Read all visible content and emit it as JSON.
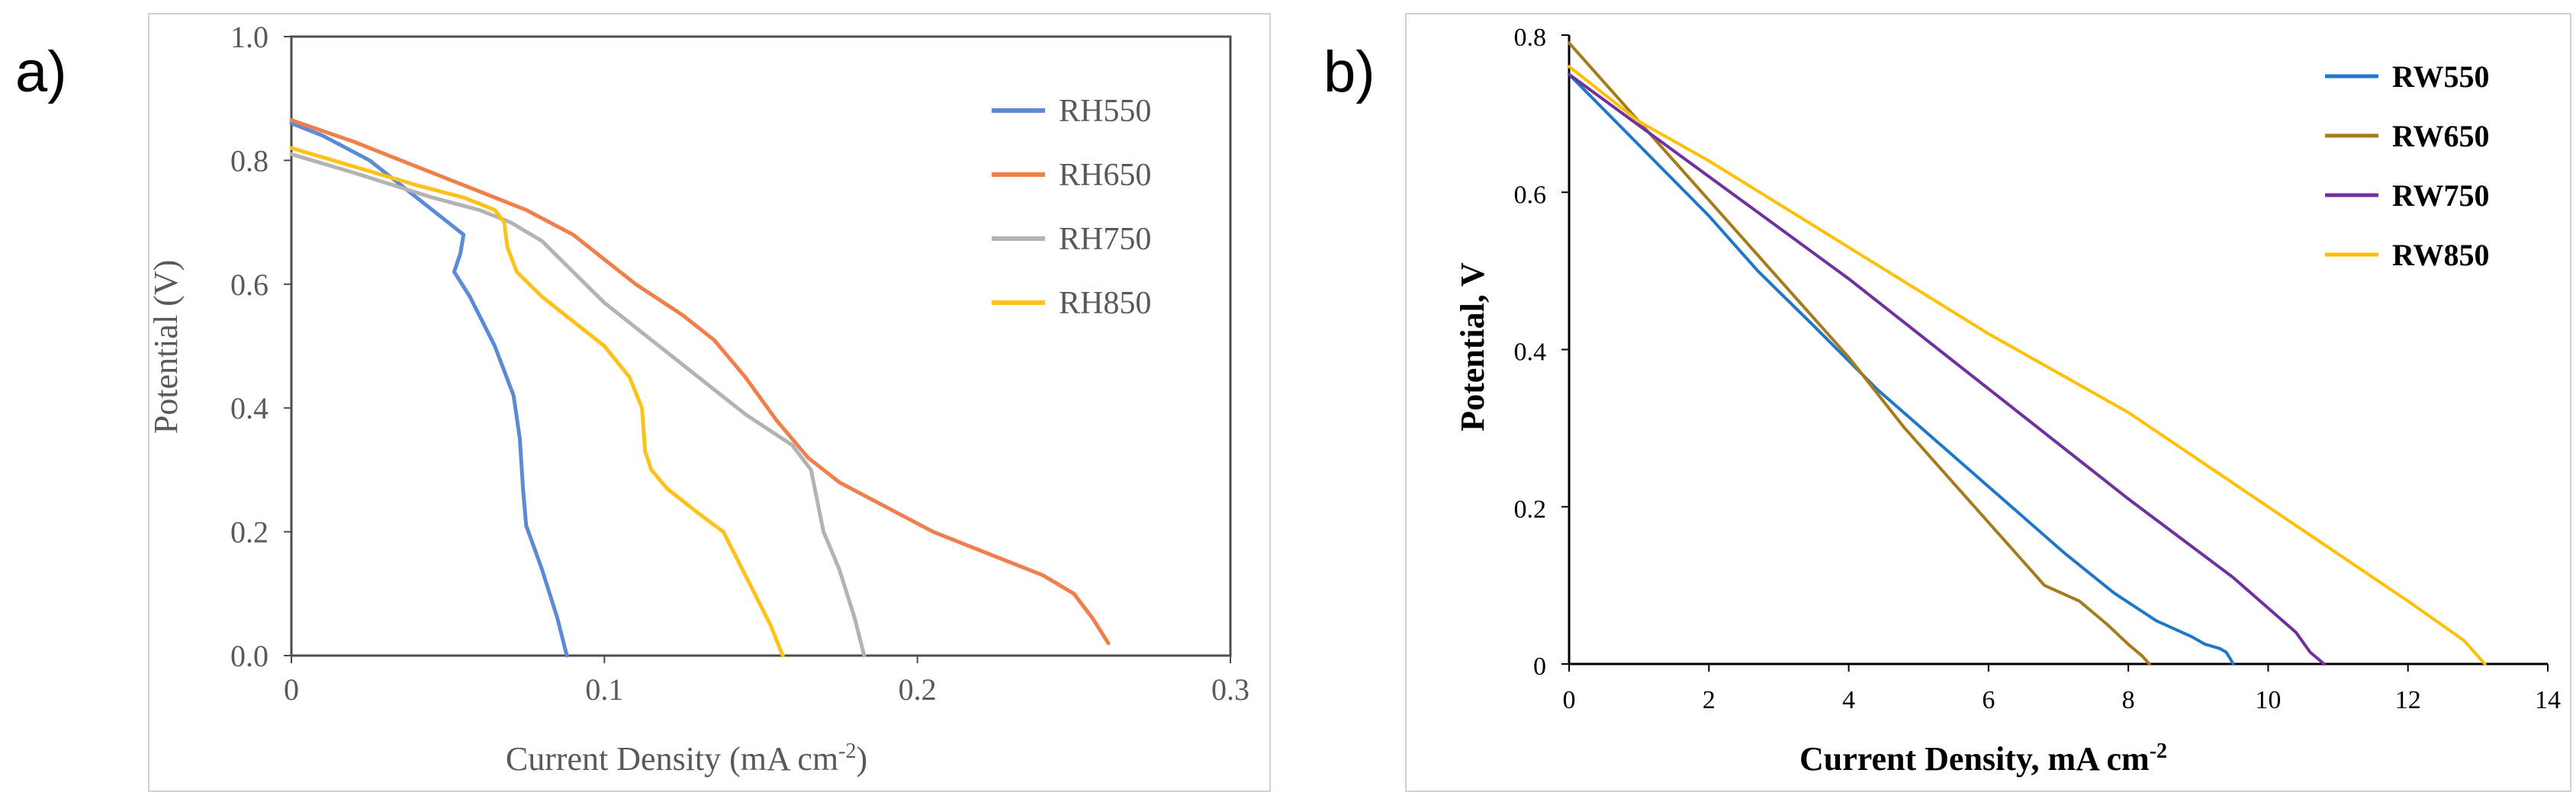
{
  "panels": [
    {
      "letter": "a)",
      "chart_data": {
        "type": "line",
        "title": "",
        "xlabel": "Current Density (mA cm",
        "xlabel_sup": "-2",
        "xlabel_tail": ")",
        "ylabel": "Potential (V)",
        "xlim": [
          0,
          0.3
        ],
        "ylim": [
          0,
          1.0
        ],
        "xticks": [
          0,
          0.1,
          0.2,
          0.3
        ],
        "xtick_labels": [
          "0",
          "0.1",
          "0.2",
          "0.3"
        ],
        "yticks": [
          0,
          0.2,
          0.4,
          0.6,
          0.8,
          1.0
        ],
        "ytick_labels": [
          "0.0",
          "0.2",
          "0.4",
          "0.6",
          "0.8",
          "1.0"
        ],
        "grid": false,
        "legend_position": "top-right",
        "series": [
          {
            "name": "RH550",
            "color": "#5B8BD7",
            "x": [
              0,
              0.01,
              0.025,
              0.04,
              0.05,
              0.055,
              0.054,
              0.052,
              0.057,
              0.065,
              0.071,
              0.073,
              0.074,
              0.075,
              0.08,
              0.085,
              0.088
            ],
            "y": [
              0.86,
              0.84,
              0.8,
              0.74,
              0.7,
              0.68,
              0.65,
              0.62,
              0.58,
              0.5,
              0.42,
              0.35,
              0.27,
              0.21,
              0.14,
              0.06,
              0.0
            ]
          },
          {
            "name": "RH650",
            "color": "#F07F4C",
            "x": [
              0,
              0.02,
              0.05,
              0.075,
              0.09,
              0.1,
              0.11,
              0.125,
              0.135,
              0.145,
              0.155,
              0.165,
              0.175,
              0.19,
              0.205,
              0.22,
              0.24,
              0.25,
              0.256,
              0.261
            ],
            "y": [
              0.865,
              0.83,
              0.77,
              0.72,
              0.68,
              0.64,
              0.6,
              0.55,
              0.51,
              0.45,
              0.38,
              0.32,
              0.28,
              0.24,
              0.2,
              0.17,
              0.13,
              0.1,
              0.06,
              0.02
            ]
          },
          {
            "name": "RH750",
            "color": "#B3B3B3",
            "x": [
              0,
              0.02,
              0.045,
              0.06,
              0.07,
              0.08,
              0.09,
              0.1,
              0.115,
              0.13,
              0.145,
              0.16,
              0.166,
              0.168,
              0.17,
              0.175,
              0.18,
              0.183
            ],
            "y": [
              0.81,
              0.78,
              0.74,
              0.72,
              0.7,
              0.67,
              0.62,
              0.57,
              0.51,
              0.45,
              0.39,
              0.34,
              0.3,
              0.25,
              0.2,
              0.14,
              0.06,
              0.0
            ]
          },
          {
            "name": "RH850",
            "color": "#FFC21A",
            "x": [
              0,
              0.02,
              0.04,
              0.055,
              0.065,
              0.068,
              0.069,
              0.072,
              0.08,
              0.09,
              0.1,
              0.108,
              0.112,
              0.113,
              0.115,
              0.12,
              0.13,
              0.138,
              0.142,
              0.148,
              0.153,
              0.157
            ],
            "y": [
              0.82,
              0.79,
              0.76,
              0.74,
              0.72,
              0.7,
              0.66,
              0.62,
              0.58,
              0.54,
              0.5,
              0.45,
              0.4,
              0.33,
              0.3,
              0.27,
              0.23,
              0.2,
              0.16,
              0.1,
              0.05,
              0.0
            ]
          }
        ]
      }
    },
    {
      "letter": "b)",
      "chart_data": {
        "type": "line",
        "title": "",
        "xlabel": "Current Density, mA cm",
        "xlabel_sup": "-2",
        "xlabel_tail": "",
        "ylabel": "Potential, V",
        "xlim": [
          0,
          14
        ],
        "ylim": [
          0,
          0.8
        ],
        "xticks": [
          0,
          2,
          4,
          6,
          8,
          10,
          12,
          14
        ],
        "xtick_labels": [
          "0",
          "2",
          "4",
          "6",
          "8",
          "10",
          "12",
          "14"
        ],
        "yticks": [
          0,
          0.2,
          0.4,
          0.6,
          0.8
        ],
        "ytick_labels": [
          "0",
          "0.2",
          "0.4",
          "0.6",
          "0.8"
        ],
        "grid": false,
        "legend_position": "top-right",
        "series": [
          {
            "name": "RW550",
            "color": "#1F77C9",
            "x": [
              0,
              1,
              2,
              2.7,
              3.5,
              4.4,
              5.3,
              6.2,
              7.1,
              7.8,
              8.4,
              8.9,
              9.1,
              9.3,
              9.4,
              9.45,
              9.5
            ],
            "y": [
              0.75,
              0.66,
              0.57,
              0.5,
              0.43,
              0.35,
              0.28,
              0.21,
              0.14,
              0.09,
              0.055,
              0.035,
              0.025,
              0.02,
              0.015,
              0.008,
              0.0
            ]
          },
          {
            "name": "RW650",
            "color": "#A67C1A",
            "x": [
              0,
              1,
              2,
              3,
              4,
              4.8,
              5.5,
              6,
              6.4,
              6.8,
              7.3,
              7.7,
              8,
              8.2,
              8.3
            ],
            "y": [
              0.79,
              0.69,
              0.59,
              0.49,
              0.39,
              0.3,
              0.23,
              0.18,
              0.14,
              0.1,
              0.08,
              0.05,
              0.025,
              0.01,
              0.0
            ]
          },
          {
            "name": "RW750",
            "color": "#7030A0",
            "x": [
              0,
              2,
              4,
              6,
              8,
              9.5,
              10.4,
              10.6,
              10.8
            ],
            "y": [
              0.75,
              0.62,
              0.49,
              0.35,
              0.21,
              0.11,
              0.04,
              0.015,
              0.0
            ]
          },
          {
            "name": "RW850",
            "color": "#FFC000",
            "x": [
              0,
              1,
              2,
              4,
              6,
              8,
              10,
              12,
              12.8,
              13.1
            ],
            "y": [
              0.76,
              0.69,
              0.64,
              0.53,
              0.42,
              0.32,
              0.2,
              0.08,
              0.03,
              0.0
            ]
          }
        ]
      }
    }
  ]
}
